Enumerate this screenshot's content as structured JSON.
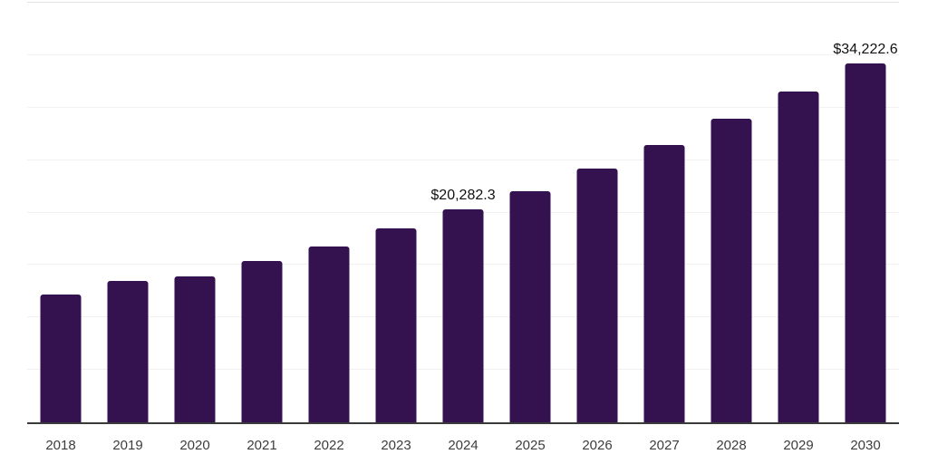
{
  "chart_data": {
    "type": "bar",
    "title": "",
    "xlabel": "",
    "ylabel": "",
    "categories": [
      "2018",
      "2019",
      "2020",
      "2021",
      "2022",
      "2023",
      "2024",
      "2025",
      "2026",
      "2027",
      "2028",
      "2029",
      "2030"
    ],
    "values": [
      12150,
      13500,
      13900,
      15350,
      16800,
      18450,
      20282.3,
      22000,
      24200,
      26450,
      28900,
      31500,
      34222.6
    ],
    "annotations": [
      {
        "category": "2024",
        "text": "$20,282.3"
      },
      {
        "category": "2030",
        "text": "$34,222.6"
      }
    ],
    "ylim": [
      0,
      40000
    ],
    "gridline_interval": 5000,
    "grid": "horizontal-only",
    "legend": "none",
    "y_axis_labels_visible": false,
    "colors": {
      "bar": "#341250",
      "axis_line": "#3a3a3a",
      "gridline": "#f1f1f1",
      "top_border": "#e2e2e2",
      "data_label": "#111111",
      "tick_label": "#3d3d3d",
      "background": "#ffffff"
    }
  }
}
